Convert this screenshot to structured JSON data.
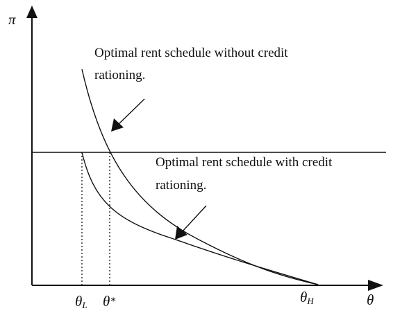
{
  "diagram": {
    "axes": {
      "y_label": "π",
      "x_label": "θ"
    },
    "ticks": [
      {
        "base": "θ",
        "sub": "L"
      },
      {
        "base": "θ",
        "sub": "*"
      },
      {
        "base": "θ",
        "sub": "H"
      }
    ],
    "annotations": {
      "without": {
        "line1": "Optimal rent schedule without credit",
        "line2": "rationing."
      },
      "with": {
        "line1": "Optimal rent schedule with credit",
        "line2": "rationing."
      }
    },
    "curves": [
      {
        "name": "rent schedule without credit rationing",
        "shape": "convex, decreasing"
      },
      {
        "name": "rent schedule with credit rationing",
        "shape": "convex, decreasing"
      },
      {
        "name": "horizontal reference line",
        "shape": "flat"
      }
    ],
    "colors": {
      "ink": "#111111",
      "background": "#ffffff"
    }
  }
}
